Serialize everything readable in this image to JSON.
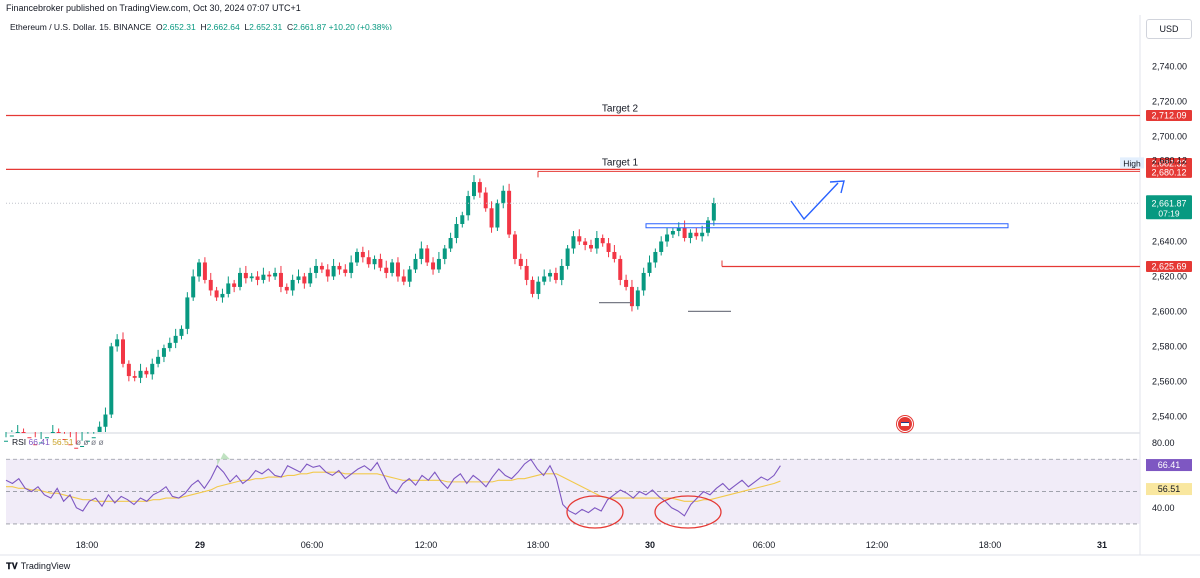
{
  "header": {
    "published": "Financebroker published on TradingView.com, Oct 30, 2024 07:07 UTC+1",
    "symbol": "Ethereum / U.S. Dollar, 15, BINANCE",
    "ohlc": {
      "o": "2,652.31",
      "h": "2,662.64",
      "l": "2,652.31",
      "c": "2,661.87"
    },
    "change": "+10.20 (+0.38%)",
    "currency": "USD"
  },
  "footer": {
    "brand": "TradingView"
  },
  "colors": {
    "up": "#089981",
    "down": "#f23645",
    "line_red": "#e53935",
    "blue": "#2962ff",
    "rsi": "#7e57c2",
    "rsi_ma": "#f2c94c",
    "rsi_band": "#ede7f6"
  },
  "chart_data": [
    {
      "type": "candlestick",
      "title": "Ethereum / U.S. Dollar, 15, BINANCE",
      "x_ticks": [
        "18:00",
        "29",
        "06:00",
        "12:00",
        "18:00",
        "30",
        "06:00",
        "12:00",
        "18:00",
        "31"
      ],
      "y_ticks": [
        "2,740.00",
        "2,720.00",
        "2,700.00",
        "2,680.12",
        "2,640.00",
        "2,620.00",
        "2,600.00",
        "2,580.00",
        "2,560.00",
        "2,540.00"
      ],
      "ylim": [
        2531,
        2761
      ],
      "close_series_approx": [
        2526,
        2529,
        2531,
        2528,
        2524,
        2522,
        2525,
        2528,
        2531,
        2527,
        2524,
        2522,
        2520,
        2523,
        2526,
        2528,
        2534,
        2541,
        2580,
        2584,
        2570,
        2563,
        2562,
        2566,
        2564,
        2570,
        2574,
        2579,
        2582,
        2586,
        2590,
        2608,
        2620,
        2628,
        2618,
        2612,
        2608,
        2610,
        2616,
        2614,
        2622,
        2619,
        2620,
        2618,
        2621,
        2620,
        2622,
        2614,
        2612,
        2618,
        2620,
        2616,
        2622,
        2626,
        2624,
        2620,
        2626,
        2624,
        2622,
        2628,
        2634,
        2631,
        2627,
        2630,
        2625,
        2622,
        2628,
        2620,
        2617,
        2624,
        2630,
        2636,
        2628,
        2624,
        2630,
        2636,
        2642,
        2650,
        2655,
        2666,
        2674,
        2668,
        2659,
        2648,
        2662,
        2669,
        2644,
        2630,
        2626,
        2618,
        2610,
        2617,
        2620,
        2622,
        2618,
        2626,
        2636,
        2643,
        2640,
        2638,
        2636,
        2642,
        2639,
        2634,
        2630,
        2618,
        2614,
        2603,
        2612,
        2622,
        2628,
        2634,
        2640,
        2644,
        2646,
        2648,
        2642,
        2645,
        2643,
        2645,
        2652,
        2662
      ],
      "horizontal_levels": [
        {
          "label": "Target 2",
          "value": "2,712.09"
        },
        {
          "label": "2,682.32",
          "value": "2,682.32"
        },
        {
          "label": "Target 1",
          "value": "2,680.12"
        },
        {
          "label": "High",
          "value": "2,680.12"
        },
        {
          "label": "",
          "value": "2,661.87"
        },
        {
          "label": "",
          "value": "2,625.69"
        }
      ],
      "last_price_tag": {
        "price": "2,661.87",
        "countdown": "07:19"
      },
      "support_lows": [
        "2,605",
        "2,600"
      ]
    },
    {
      "type": "line",
      "title": "RSI",
      "series": [
        {
          "name": "RSI",
          "value": "66.41"
        },
        {
          "name": "",
          "value": "56.51"
        }
      ],
      "params": "ø ø ø ø",
      "y_ticks": [
        "80.00",
        "40.00"
      ],
      "ylim": [
        25,
        85
      ],
      "bands": [
        30,
        50,
        70
      ],
      "rsi_values_approx": [
        57,
        55,
        58,
        52,
        50,
        53,
        48,
        46,
        52,
        44,
        48,
        40,
        38,
        44,
        46,
        41,
        48,
        43,
        47,
        45,
        42,
        46,
        44,
        48,
        50,
        53,
        47,
        46,
        49,
        54,
        57,
        52,
        58,
        66,
        62,
        56,
        60,
        55,
        58,
        63,
        61,
        64,
        60,
        59,
        66,
        64,
        62,
        67,
        65,
        66,
        62,
        60,
        63,
        58,
        61,
        64,
        66,
        63,
        68,
        60,
        52,
        49,
        55,
        58,
        54,
        60,
        57,
        62,
        56,
        52,
        58,
        61,
        55,
        60,
        57,
        53,
        59,
        64,
        60,
        58,
        62,
        67,
        70,
        64,
        60,
        66,
        58,
        42,
        38,
        36,
        39,
        37,
        40,
        38,
        45,
        48,
        51,
        49,
        46,
        50,
        48,
        51,
        47,
        44,
        40,
        38,
        35,
        42,
        46,
        50,
        48,
        52,
        55,
        51,
        54,
        57,
        53,
        56,
        59,
        57,
        60,
        66
      ],
      "rsi_ma_values_approx": [
        53,
        53,
        52,
        52,
        51,
        51,
        50,
        49,
        49,
        48,
        47,
        46,
        45,
        45,
        44,
        44,
        44,
        44,
        44,
        44,
        44,
        44,
        44,
        45,
        45,
        46,
        46,
        46,
        47,
        48,
        49,
        50,
        51,
        53,
        54,
        55,
        56,
        57,
        57,
        58,
        58,
        59,
        59,
        59,
        60,
        60,
        61,
        61,
        62,
        62,
        62,
        62,
        62,
        61,
        61,
        61,
        61,
        61,
        61,
        60,
        59,
        58,
        57,
        57,
        57,
        57,
        57,
        57,
        57,
        56,
        56,
        56,
        56,
        56,
        56,
        56,
        56,
        57,
        57,
        57,
        58,
        58,
        59,
        60,
        61,
        61,
        61,
        59,
        57,
        55,
        53,
        51,
        49,
        47,
        46,
        46,
        46,
        46,
        46,
        46,
        46,
        46,
        46,
        46,
        46,
        45,
        44,
        44,
        44,
        45,
        45,
        46,
        47,
        48,
        49,
        50,
        51,
        52,
        53,
        54,
        55,
        56.51
      ]
    }
  ]
}
